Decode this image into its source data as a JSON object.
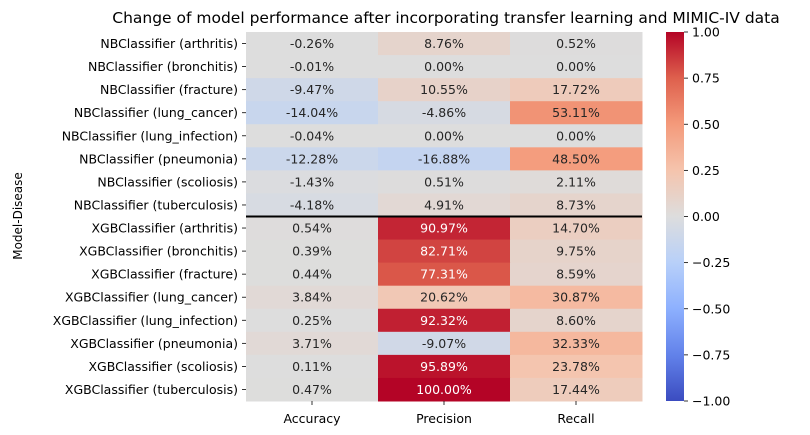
{
  "chart_data": {
    "type": "heatmap",
    "title": "Change of model performance after incorporating transfer learning and MIMIC-IV data",
    "xlabel": "",
    "ylabel": "Model-Disease",
    "columns": [
      "Accuracy",
      "Precision",
      "Recall"
    ],
    "rows": [
      "NBClassifier (arthritis)",
      "NBClassifier (bronchitis)",
      "NBClassifier (fracture)",
      "NBClassifier (lung_cancer)",
      "NBClassifier (lung_infection)",
      "NBClassifier (pneumonia)",
      "NBClassifier (scoliosis)",
      "NBClassifier (tuberculosis)",
      "XGBClassifier (arthritis)",
      "XGBClassifier (bronchitis)",
      "XGBClassifier (fracture)",
      "XGBClassifier (lung_cancer)",
      "XGBClassifier (lung_infection)",
      "XGBClassifier (pneumonia)",
      "XGBClassifier (scoliosis)",
      "XGBClassifier (tuberculosis)"
    ],
    "values": [
      [
        -0.0026,
        0.0876,
        0.0052
      ],
      [
        -0.0001,
        0.0,
        0.0
      ],
      [
        -0.0947,
        0.1055,
        0.1772
      ],
      [
        -0.1404,
        -0.0486,
        0.5311
      ],
      [
        -0.0004,
        0.0,
        0.0
      ],
      [
        -0.1228,
        -0.1688,
        0.485
      ],
      [
        -0.0143,
        0.0051,
        0.0211
      ],
      [
        -0.0418,
        0.0491,
        0.0873
      ],
      [
        0.0054,
        0.9097,
        0.147
      ],
      [
        0.0039,
        0.8271,
        0.0975
      ],
      [
        0.0044,
        0.7731,
        0.0859
      ],
      [
        0.0384,
        0.2062,
        0.3087
      ],
      [
        0.0025,
        0.9232,
        0.086
      ],
      [
        0.0371,
        -0.0907,
        0.3233
      ],
      [
        0.0011,
        0.9589,
        0.2378
      ],
      [
        0.0047,
        1.0,
        0.1744
      ]
    ],
    "annotations": [
      [
        "-0.26%",
        "8.76%",
        "0.52%"
      ],
      [
        "-0.01%",
        "0.00%",
        "0.00%"
      ],
      [
        "-9.47%",
        "10.55%",
        "17.72%"
      ],
      [
        "-14.04%",
        "-4.86%",
        "53.11%"
      ],
      [
        "-0.04%",
        "0.00%",
        "0.00%"
      ],
      [
        "-12.28%",
        "-16.88%",
        "48.50%"
      ],
      [
        "-1.43%",
        "0.51%",
        "2.11%"
      ],
      [
        "-4.18%",
        "4.91%",
        "8.73%"
      ],
      [
        "0.54%",
        "90.97%",
        "14.70%"
      ],
      [
        "0.39%",
        "82.71%",
        "9.75%"
      ],
      [
        "0.44%",
        "77.31%",
        "8.59%"
      ],
      [
        "3.84%",
        "20.62%",
        "30.87%"
      ],
      [
        "0.25%",
        "92.32%",
        "8.60%"
      ],
      [
        "3.71%",
        "-9.07%",
        "32.33%"
      ],
      [
        "0.11%",
        "95.89%",
        "23.78%"
      ],
      [
        "0.47%",
        "100.00%",
        "17.44%"
      ]
    ],
    "separator_after_row": 8,
    "colormap": "coolwarm",
    "vmin": -1.0,
    "vmax": 1.0,
    "colorbar_ticks": [
      1.0,
      0.75,
      0.5,
      0.25,
      0.0,
      -0.25,
      -0.5,
      -0.75,
      -1.0
    ],
    "colorbar_tick_labels": [
      "1.00",
      "0.75",
      "0.50",
      "0.25",
      "0.00",
      "−0.25",
      "−0.50",
      "−0.75",
      "−1.00"
    ]
  }
}
